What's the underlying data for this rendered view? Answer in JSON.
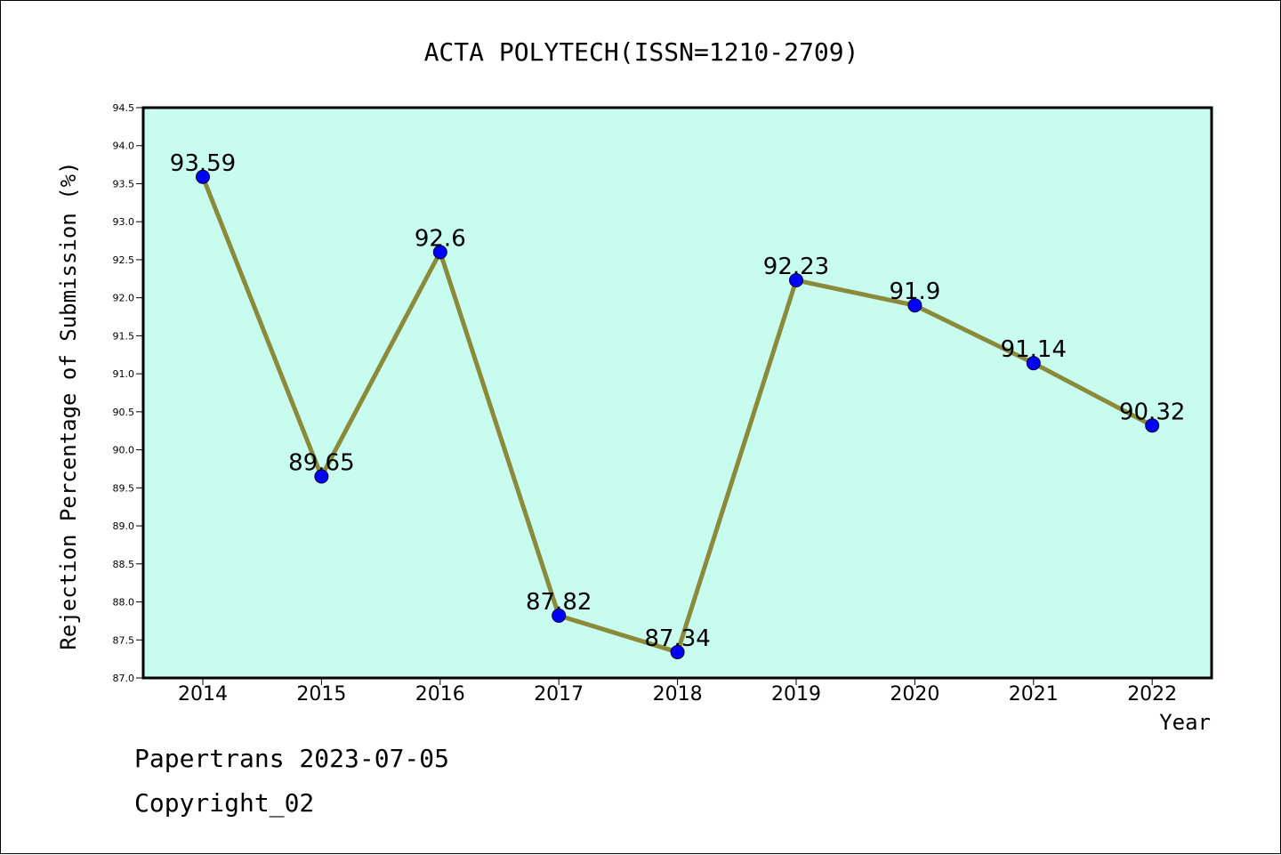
{
  "chart_data": {
    "type": "line",
    "title": "ACTA POLYTECH(ISSN=1210-2709)",
    "xlabel": "Year",
    "ylabel": "Rejection Percentage of Submission (%)",
    "categories": [
      "2014",
      "2015",
      "2016",
      "2017",
      "2018",
      "2019",
      "2020",
      "2021",
      "2022"
    ],
    "series": [
      {
        "values": [
          93.59,
          89.65,
          92.6,
          87.82,
          87.34,
          92.23,
          91.9,
          91.14,
          90.32
        ],
        "labels": [
          "93.59",
          "89.65",
          "92.6",
          "87.82",
          "87.34",
          "92.23",
          "91.9",
          "91.14",
          "90.32"
        ]
      }
    ],
    "ylim": [
      87.0,
      94.5
    ],
    "yticks": [
      "87.0",
      "87.5",
      "88.0",
      "88.5",
      "89.0",
      "89.5",
      "90.0",
      "90.5",
      "91.0",
      "91.5",
      "92.0",
      "92.5",
      "93.0",
      "93.5",
      "94.0",
      "94.5"
    ],
    "grid": false,
    "colors": {
      "plot_background": "#c7fcee",
      "line": "#8b8a3a",
      "marker": "#0000ff"
    }
  },
  "footer": {
    "line1": "Papertrans 2023-07-05",
    "line2": "Copyright_02"
  }
}
